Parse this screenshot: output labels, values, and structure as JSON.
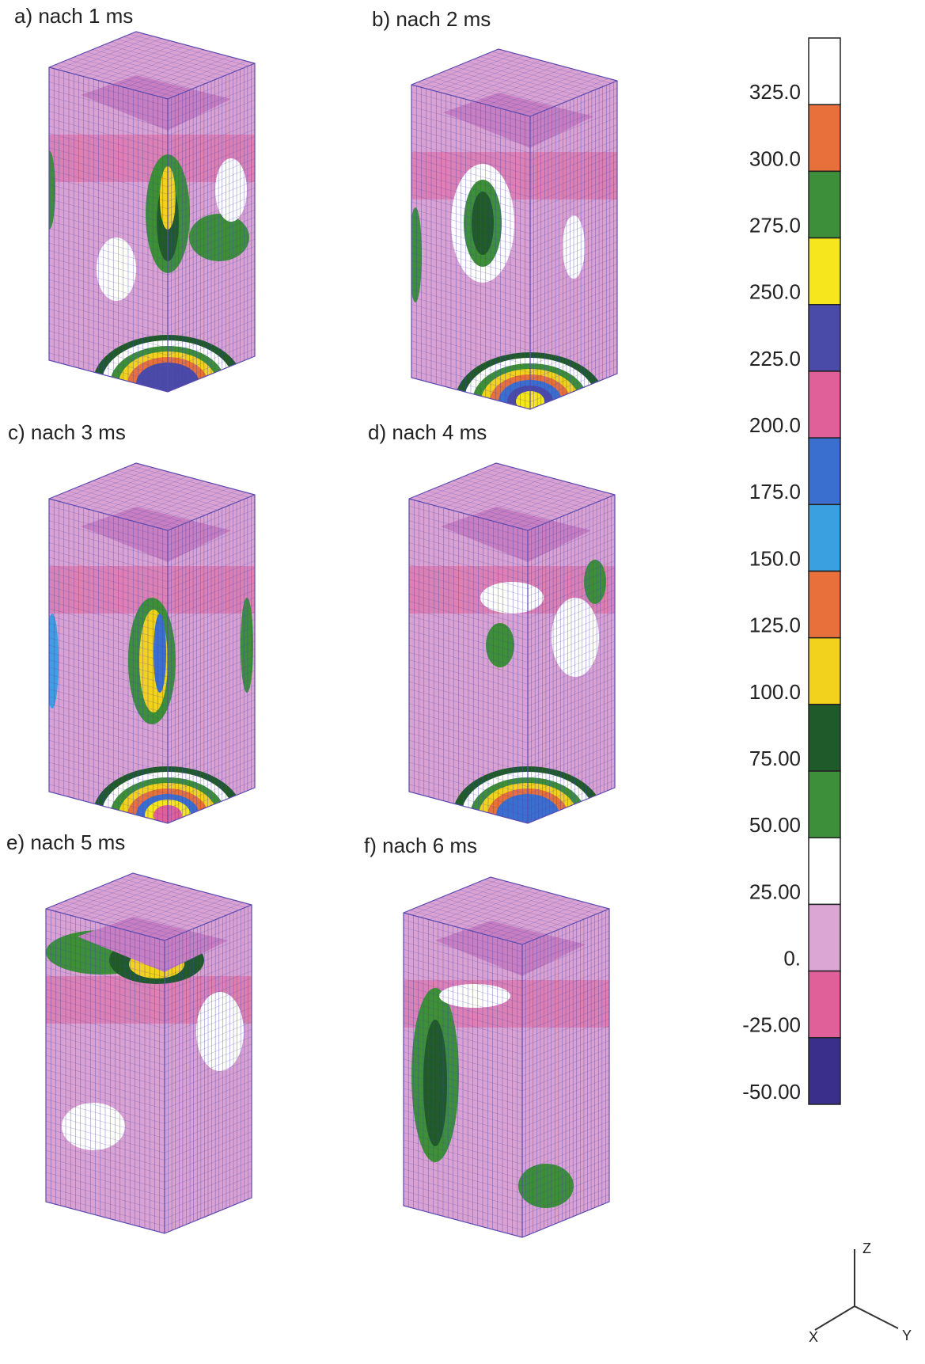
{
  "panels": [
    {
      "label": "a) nach 1 ms"
    },
    {
      "label": "b) nach 2 ms"
    },
    {
      "label": "c) nach 3 ms"
    },
    {
      "label": "d) nach 4 ms"
    },
    {
      "label": "e) nach 5 ms"
    },
    {
      "label": "f) nach 6 ms"
    }
  ],
  "legend": {
    "levels": [
      {
        "label": "325.0",
        "color": "#ffffff"
      },
      {
        "label": "300.0",
        "color": "#e8703a"
      },
      {
        "label": "275.0",
        "color": "#3d8f3a"
      },
      {
        "label": "250.0",
        "color": "#f5e61e"
      },
      {
        "label": "225.0",
        "color": "#4a4aa8"
      },
      {
        "label": "200.0",
        "color": "#e0609a"
      },
      {
        "label": "175.0",
        "color": "#3a6fd0"
      },
      {
        "label": "150.0",
        "color": "#3aa0e0"
      },
      {
        "label": "125.0",
        "color": "#e8703a"
      },
      {
        "label": "100.0",
        "color": "#f2d21c"
      },
      {
        "label": "75.00",
        "color": "#1f5a2a"
      },
      {
        "label": "50.00",
        "color": "#3d8f3a"
      },
      {
        "label": "25.00",
        "color": "#ffffff"
      },
      {
        "label": "0.",
        "color": "#dca6d4"
      },
      {
        "label": "-25.00",
        "color": "#e0609a"
      },
      {
        "label": "-50.00",
        "color": "#3a2f8a"
      }
    ]
  },
  "axes_triad": {
    "z": "Z",
    "x": "X",
    "y": "Y"
  }
}
